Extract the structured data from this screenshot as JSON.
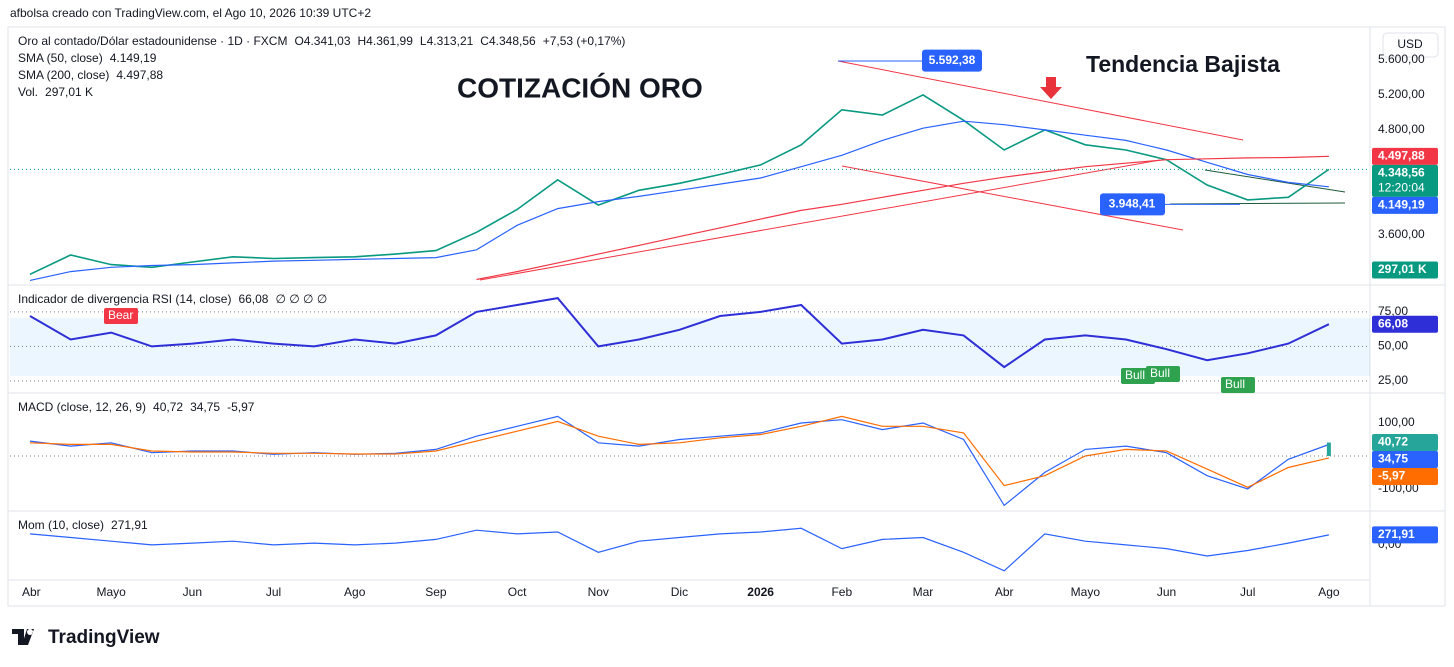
{
  "header": "afbolsa creado con TradingView.com, el Ago 10, 2026 10:39 UTC+2",
  "currency": "USD",
  "footer": "TradingView",
  "chart_data": [
    {
      "type": "line",
      "title": "Oro al contado/Dólar estadounidense · 1D · FXCM",
      "ohlc": [
        "O4.341,03",
        "H4.361,99",
        "L4.313,21",
        "C4.348,56"
      ],
      "change": "+7,53 (+0,17%)",
      "close_label": "4.348,56",
      "countdown": "12:20:04",
      "color": "#089981",
      "values": [
        3150,
        3370,
        3260,
        3230,
        3290,
        3350,
        3330,
        3340,
        3350,
        3380,
        3420,
        3630,
        3890,
        4230,
        3940,
        4110,
        4190,
        4290,
        4400,
        4630,
        5030,
        4970,
        5200,
        4910,
        4570,
        4800,
        4630,
        4570,
        4460,
        4170,
        4000,
        4030,
        4348.56
      ],
      "series": [
        {
          "name": "SMA (50, close)",
          "color": "#2962ff",
          "last_label": "4.149,19",
          "values": [
            3080,
            3180,
            3230,
            3250,
            3260,
            3280,
            3300,
            3310,
            3320,
            3330,
            3340,
            3430,
            3710,
            3900,
            3980,
            4040,
            4110,
            4180,
            4250,
            4380,
            4510,
            4680,
            4820,
            4900,
            4860,
            4800,
            4740,
            4680,
            4570,
            4430,
            4290,
            4200,
            4149.19
          ]
        },
        {
          "name": "SMA (200, close)",
          "color": "#f23645",
          "last_label": "4.497,88",
          "values": [
            null,
            null,
            null,
            null,
            null,
            null,
            null,
            null,
            null,
            null,
            null,
            3090,
            3180,
            3280,
            3380,
            3480,
            3580,
            3680,
            3780,
            3880,
            3950,
            4030,
            4110,
            4190,
            4260,
            4320,
            4380,
            4420,
            4460,
            4470,
            4480,
            4485,
            4497.88
          ]
        }
      ],
      "volume": {
        "name": "Vol.",
        "last_label": "297,01 K",
        "color": "#089981"
      },
      "annotations": [
        {
          "text": "COTIZACIÓN ORO",
          "color": "#f23645"
        },
        {
          "text": "Tendencia Bajista",
          "color": "#2962ff"
        }
      ],
      "peak": {
        "value": 5592.38,
        "label": "5.592,38"
      },
      "low": {
        "value": 3948.41,
        "label": "3.948,41"
      },
      "ylim": [
        3050,
        5965
      ],
      "yticks": [
        {
          "value": 5600,
          "label": "5.600,00"
        },
        {
          "value": 5200,
          "label": "5.200,00"
        },
        {
          "value": 4800,
          "label": "4.800,00"
        },
        {
          "value": 3600,
          "label": "3.600,00"
        }
      ]
    },
    {
      "type": "line",
      "title": "Indicador de divergencia RSI (14, close)",
      "legend_extra": "∅ ∅ ∅ ∅",
      "grid": true,
      "series": [
        {
          "name": "RSI",
          "color": "#2f2fd8",
          "last_label": "66,08",
          "values": [
            72,
            55,
            60,
            50,
            52,
            55,
            52,
            50,
            55,
            52,
            58,
            75,
            80,
            85,
            50,
            55,
            62,
            72,
            75,
            80,
            52,
            55,
            62,
            58,
            35,
            55,
            58,
            55,
            48,
            40,
            45,
            52,
            66.08
          ]
        }
      ],
      "signals": [
        "Bear",
        "Bull",
        "Bull",
        "Bull"
      ],
      "ylim": [
        17,
        93
      ],
      "yticks": [
        {
          "value": 75,
          "label": "75,00"
        },
        {
          "value": 50,
          "label": "50,00"
        },
        {
          "value": 25,
          "label": "25,00"
        }
      ]
    },
    {
      "type": "line",
      "title": "MACD (close, 12, 26, 9)",
      "histogram": {
        "color": "#26a69a",
        "last": 40.72,
        "last_label": "40,72"
      },
      "series": [
        {
          "name": "MACD",
          "color": "#2962ff",
          "last_label": "34,75",
          "values": [
            45,
            30,
            40,
            10,
            15,
            15,
            5,
            10,
            5,
            8,
            20,
            60,
            90,
            120,
            40,
            30,
            50,
            60,
            70,
            100,
            110,
            80,
            100,
            50,
            -150,
            -50,
            20,
            30,
            10,
            -60,
            -100,
            -10,
            34.75
          ]
        },
        {
          "name": "Signal",
          "color": "#ff6d00",
          "last_label": "-5,97",
          "values": [
            40,
            35,
            35,
            15,
            12,
            12,
            8,
            8,
            6,
            6,
            15,
            45,
            75,
            105,
            60,
            35,
            40,
            55,
            65,
            90,
            120,
            90,
            90,
            70,
            -90,
            -60,
            0,
            20,
            15,
            -40,
            -95,
            -35,
            -5.97
          ]
        }
      ],
      "ylim": [
        -164,
        185
      ],
      "yticks": [
        {
          "value": 100,
          "label": "100,00"
        },
        {
          "value": -100,
          "label": "-100,00"
        }
      ]
    },
    {
      "type": "line",
      "title": "Mom (10, close)",
      "series": [
        {
          "name": "Mom",
          "color": "#2962ff",
          "last_label": "271,91",
          "values": [
            300,
            200,
            100,
            0,
            50,
            100,
            0,
            50,
            0,
            50,
            150,
            400,
            300,
            350,
            -200,
            100,
            200,
            300,
            350,
            450,
            -100,
            150,
            200,
            -200,
            -700,
            300,
            100,
            0,
            -100,
            -300,
            -150,
            50,
            271.91
          ]
        }
      ],
      "categories": [
        "Abr",
        null,
        "Mayo",
        null,
        "Jun",
        null,
        "Jul",
        null,
        "Ago",
        null,
        "Sep",
        null,
        "Oct",
        null,
        "Nov",
        null,
        "Dic",
        null,
        "2026",
        null,
        "Feb",
        null,
        "Mar",
        null,
        "Abr",
        null,
        "Mayo",
        null,
        "Jun",
        null,
        "Jul",
        null,
        "Ago"
      ],
      "ylim": [
        -950,
        865
      ],
      "yticks": [
        {
          "value": 0,
          "label": "0,00"
        }
      ]
    }
  ]
}
